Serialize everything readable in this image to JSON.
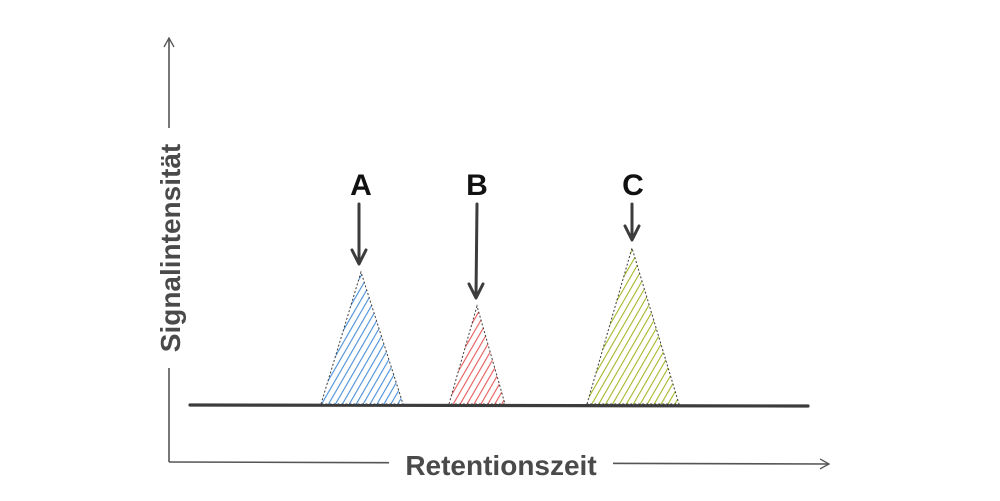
{
  "axes": {
    "x_label": "Retentionszeit",
    "y_label": "Signalintensität"
  },
  "peaks": [
    {
      "label": "A",
      "color": "#4a90d9"
    },
    {
      "label": "B",
      "color": "#e85a5a"
    },
    {
      "label": "C",
      "color": "#a8b828"
    }
  ]
}
